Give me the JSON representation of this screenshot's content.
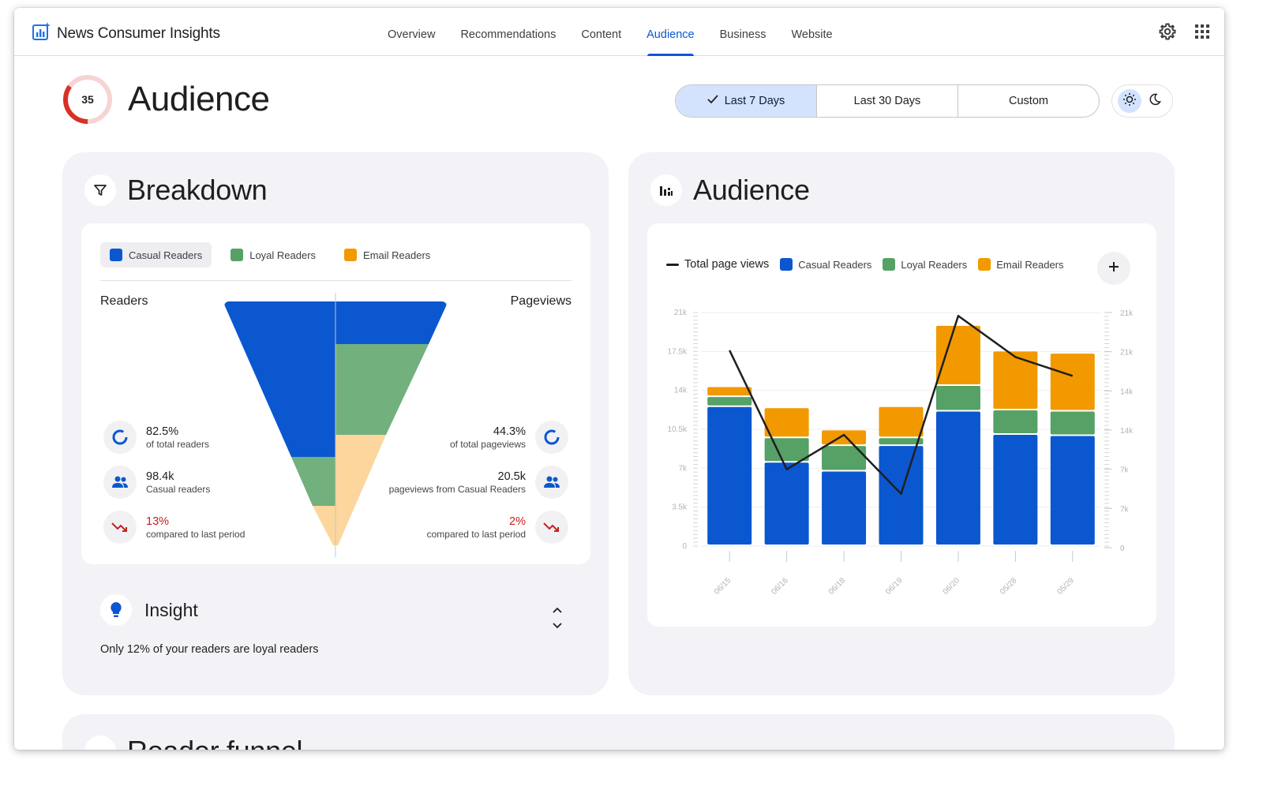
{
  "app": {
    "name": "News Consumer Insights"
  },
  "nav": {
    "items": [
      {
        "label": "Overview"
      },
      {
        "label": "Recommendations"
      },
      {
        "label": "Content"
      },
      {
        "label": "Audience"
      },
      {
        "label": "Business"
      },
      {
        "label": "Website"
      }
    ],
    "active": "Audience"
  },
  "page": {
    "title": "Audience",
    "score": "35",
    "score_fraction": 0.35
  },
  "range": {
    "options": [
      {
        "label": "Last 7 Days",
        "selected": true
      },
      {
        "label": "Last 30 Days",
        "selected": false
      },
      {
        "label": "Custom",
        "selected": false
      }
    ]
  },
  "theme": {
    "selected": "light"
  },
  "breakdown": {
    "title": "Breakdown",
    "legend": [
      {
        "label": "Casual Readers",
        "color": "#0b57d0",
        "selected": true
      },
      {
        "label": "Loyal Readers",
        "color": "#56a165",
        "selected": false
      },
      {
        "label": "Email Readers",
        "color": "#f29900",
        "selected": false
      }
    ],
    "left_header": "Readers",
    "right_header": "Pageviews",
    "left_stats": [
      {
        "value": "82.5%",
        "label": "of total readers",
        "icon": "donut-icon"
      },
      {
        "value": "98.4k",
        "label": "Casual readers",
        "icon": "people-icon"
      },
      {
        "value": "13%",
        "label": "compared to last period",
        "icon": "trend-down-icon",
        "negative": true
      }
    ],
    "right_stats": [
      {
        "value": "44.3%",
        "label": "of total pageviews",
        "icon": "donut-icon"
      },
      {
        "value": "20.5k",
        "label": "pageviews from Casual Readers",
        "icon": "people-icon"
      },
      {
        "value": "2%",
        "label": "compared to last period",
        "icon": "trend-down-icon",
        "negative": true
      }
    ],
    "insight": {
      "title": "Insight",
      "text": "Only 12% of your readers are loyal readers"
    }
  },
  "audience_card": {
    "title": "Audience",
    "legend": {
      "total": "Total page views",
      "series": [
        "Casual Readers",
        "Loyal Readers",
        "Email Readers"
      ]
    }
  },
  "chart_data": {
    "type": "bar",
    "stacked": true,
    "categories": [
      "06/15",
      "06/16",
      "06/18",
      "06/19",
      "06/20",
      "05/28",
      "05/29"
    ],
    "series": [
      {
        "name": "Casual Readers",
        "color": "#0b57d0",
        "values": [
          12500,
          7500,
          6700,
          9000,
          12100,
          10000,
          9900
        ]
      },
      {
        "name": "Loyal Readers",
        "color": "#56a165",
        "values": [
          900,
          2200,
          2300,
          700,
          2300,
          2200,
          2200
        ]
      },
      {
        "name": "Email Readers",
        "color": "#f29900",
        "values": [
          900,
          2700,
          1400,
          2800,
          5400,
          5300,
          5200
        ]
      }
    ],
    "line": {
      "name": "Total page views",
      "color": "#1f1f1f",
      "values": [
        17600,
        6900,
        10000,
        4700,
        20700,
        17000,
        15300
      ]
    },
    "y_left": {
      "ticks": [
        "0",
        "3.5k",
        "7k",
        "10.5k",
        "14k",
        "17.5k",
        "21k"
      ],
      "range": [
        0,
        21000
      ]
    },
    "y_right": {
      "ticks": [
        "0",
        "7k",
        "7k",
        "14k",
        "14k",
        "21k",
        "21k"
      ]
    },
    "grid": true,
    "legend_position": "top-left"
  },
  "next_card": {
    "title": "Reader funnel"
  }
}
